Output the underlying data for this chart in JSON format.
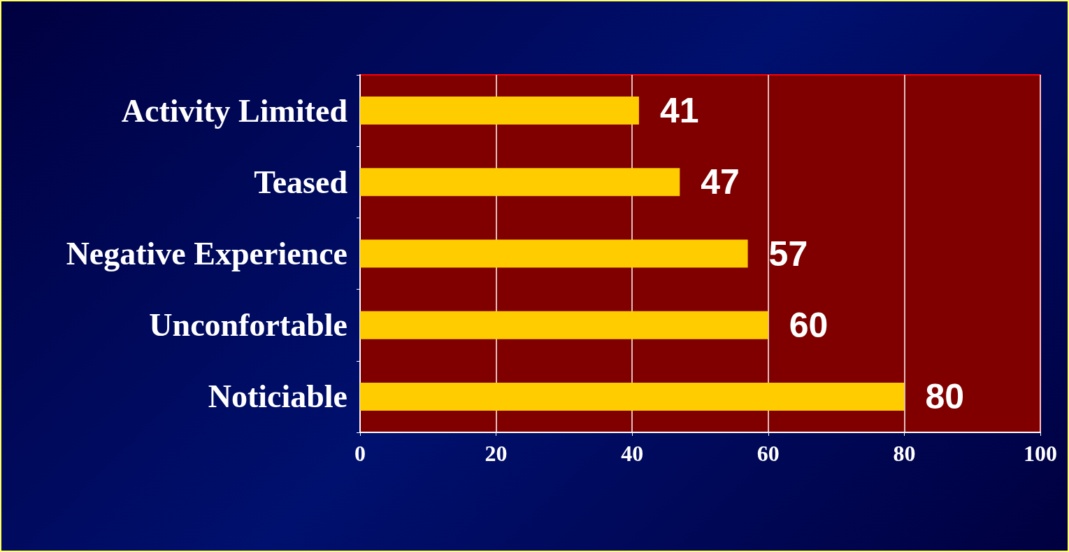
{
  "chart_data": {
    "type": "bar",
    "orientation": "horizontal",
    "categories": [
      "Activity Limited",
      "Teased",
      "Negative Experience",
      "Unconfortable",
      "Noticiable"
    ],
    "values": [
      41,
      47,
      57,
      60,
      80
    ],
    "color": "#ffcc00",
    "xlim": [
      0,
      100
    ],
    "xticks": [
      0,
      20,
      40,
      60,
      80,
      100
    ],
    "grid": "x",
    "data_labels": true
  }
}
